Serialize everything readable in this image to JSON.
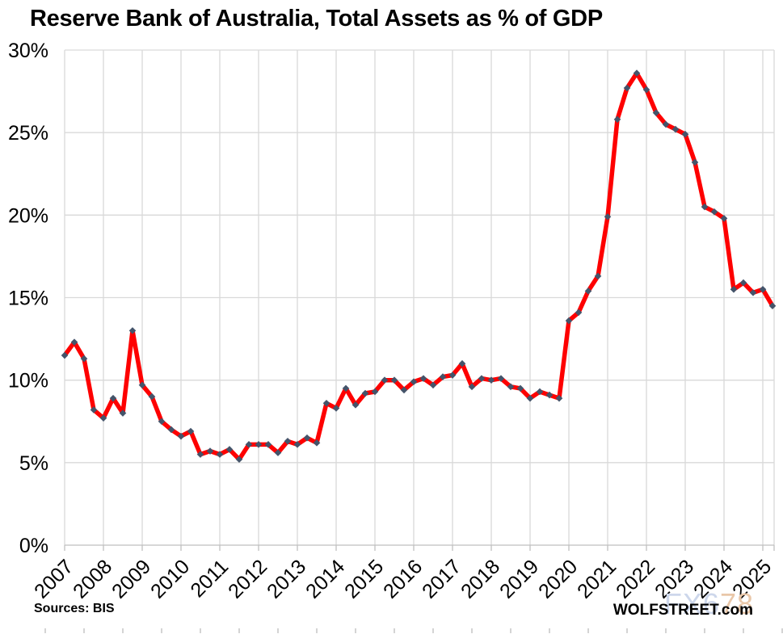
{
  "footer": {
    "sources": "Sources: BIS",
    "site": "WOLFSTREET.com",
    "watermark": {
      "part1": "FX6",
      "part2": "78"
    }
  },
  "chart_data": {
    "type": "line",
    "title": "Reserve Bank of Australia, Total Assets as % of GDP",
    "frequency": "quarterly",
    "start_period": "2007-Q1",
    "end_period": "2025-Q2",
    "grid": true,
    "legend": "none",
    "x_axis": {
      "tick_labels": [
        "2007",
        "2008",
        "2009",
        "2010",
        "2011",
        "2012",
        "2013",
        "2014",
        "2015",
        "2016",
        "2017",
        "2018",
        "2019",
        "2020",
        "2021",
        "2022",
        "2023",
        "2024",
        "2025"
      ],
      "label_rotation_deg": -45
    },
    "y_axis": {
      "min": 0,
      "max": 30,
      "step": 5,
      "tick_labels": [
        "0%",
        "5%",
        "10%",
        "15%",
        "20%",
        "25%",
        "30%"
      ],
      "unit": "% of GDP"
    },
    "ylim": [
      0,
      30
    ],
    "series": [
      {
        "name": "RBA total assets as % of GDP",
        "marker": "diamond",
        "values": [
          11.5,
          12.3,
          11.3,
          8.2,
          7.7,
          8.9,
          8.0,
          13.0,
          9.7,
          9.0,
          7.5,
          7.0,
          6.6,
          6.9,
          5.5,
          5.7,
          5.5,
          5.8,
          5.2,
          6.1,
          6.1,
          6.1,
          5.6,
          6.3,
          6.1,
          6.5,
          6.2,
          8.6,
          8.3,
          9.5,
          8.5,
          9.2,
          9.3,
          10.0,
          10.0,
          9.4,
          9.9,
          10.1,
          9.7,
          10.2,
          10.3,
          11.0,
          9.6,
          10.1,
          10.0,
          10.1,
          9.6,
          9.5,
          8.9,
          9.3,
          9.1,
          8.9,
          13.6,
          14.1,
          15.4,
          16.3,
          19.9,
          25.8,
          27.7,
          28.6,
          27.6,
          26.2,
          25.5,
          25.2,
          24.9,
          23.2,
          20.5,
          20.2,
          19.8,
          15.5,
          15.9,
          15.3,
          15.5,
          14.5
        ]
      }
    ],
    "colors": {
      "line": "#FE0000",
      "marker": "#44546A",
      "grid": "#D9D9D9",
      "axis": "#BFBFBF",
      "text": "#000000",
      "watermark_blue": "#CDD7EB",
      "watermark_tan": "#E9C7A9"
    }
  }
}
